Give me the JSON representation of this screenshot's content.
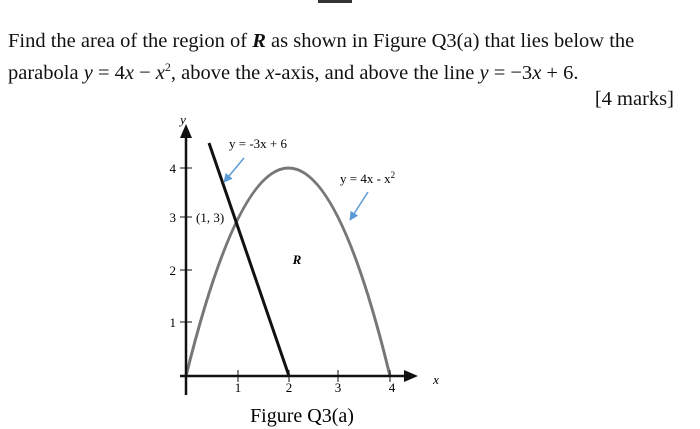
{
  "question": {
    "line1": [
      "Find the area of the region of ",
      "R",
      " as shown in Figure Q3(a) that lies below the"
    ],
    "line2": [
      "parabola ",
      "y",
      " = 4",
      "x",
      " − ",
      "x",
      "2",
      ", above the ",
      "x",
      "-axis, and above the line ",
      "y",
      " = −3",
      "x",
      " + 6",
      "."
    ],
    "marks": "[4 marks]"
  },
  "figure": {
    "caption": "Figure Q3(a)",
    "x_axis_label": "x",
    "y_axis_label": "y",
    "x_ticks": [
      "1",
      "2",
      "3",
      "4"
    ],
    "y_ticks": [
      "1",
      "2",
      "3",
      "4"
    ],
    "line_label": "y = -3x + 6",
    "parabola_label": "y = 4x - x",
    "parabola_label_exp": "2",
    "point_label": "(1, 3)",
    "region_label": "R"
  }
}
